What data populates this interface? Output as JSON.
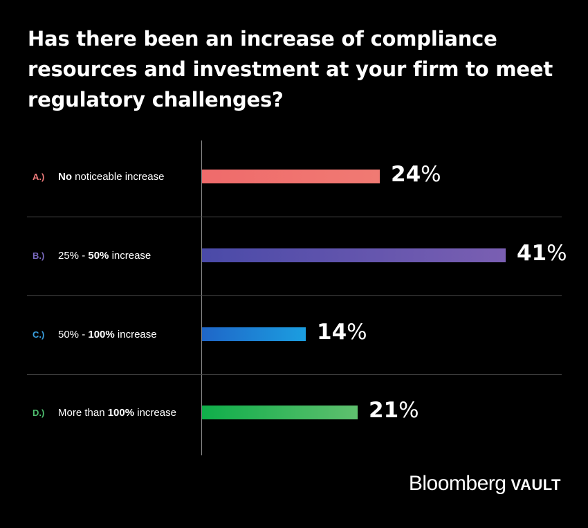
{
  "chart_data": {
    "type": "bar",
    "orientation": "horizontal",
    "title": "Has there been an increase of compliance resources and investment at your firm to meet regulatory challenges?",
    "xlim": [
      0,
      100
    ],
    "categories": [
      {
        "letter": "A.)",
        "segments": [
          {
            "text": "No",
            "bold": true
          },
          {
            "text": " noticeable increase",
            "bold": false
          }
        ],
        "value": 24,
        "value_label": "24",
        "color_start": "#ef6b6b",
        "color_end": "#f07a73"
      },
      {
        "letter": "B.)",
        "segments": [
          {
            "text": "25%",
            "bold": false
          },
          {
            "text": " - ",
            "bold": false
          },
          {
            "text": "50%",
            "bold": true
          },
          {
            "text": " increase",
            "bold": false
          }
        ],
        "value": 41,
        "value_label": "41",
        "color_start": "#4a4aa8",
        "color_end": "#7a5fb2"
      },
      {
        "letter": "C.)",
        "segments": [
          {
            "text": "50%",
            "bold": false
          },
          {
            "text": " - ",
            "bold": false
          },
          {
            "text": "100%",
            "bold": true
          },
          {
            "text": " increase",
            "bold": false
          }
        ],
        "value": 14,
        "value_label": "14",
        "color_start": "#1f66c8",
        "color_end": "#1b9ee0"
      },
      {
        "letter": "D.)",
        "segments": [
          {
            "text": "More than ",
            "bold": false
          },
          {
            "text": "100%",
            "bold": true
          },
          {
            "text": " increase",
            "bold": false
          }
        ],
        "value": 21,
        "value_label": "21",
        "color_start": "#0fae4a",
        "color_end": "#5fc06e"
      }
    ],
    "percent_symbol": "%",
    "letter_colors": [
      "#ef7b7b",
      "#7a6ac0",
      "#3aa0e0",
      "#4fc070"
    ]
  },
  "logo": {
    "brand": "Bloomberg",
    "sub": "VAULT"
  }
}
